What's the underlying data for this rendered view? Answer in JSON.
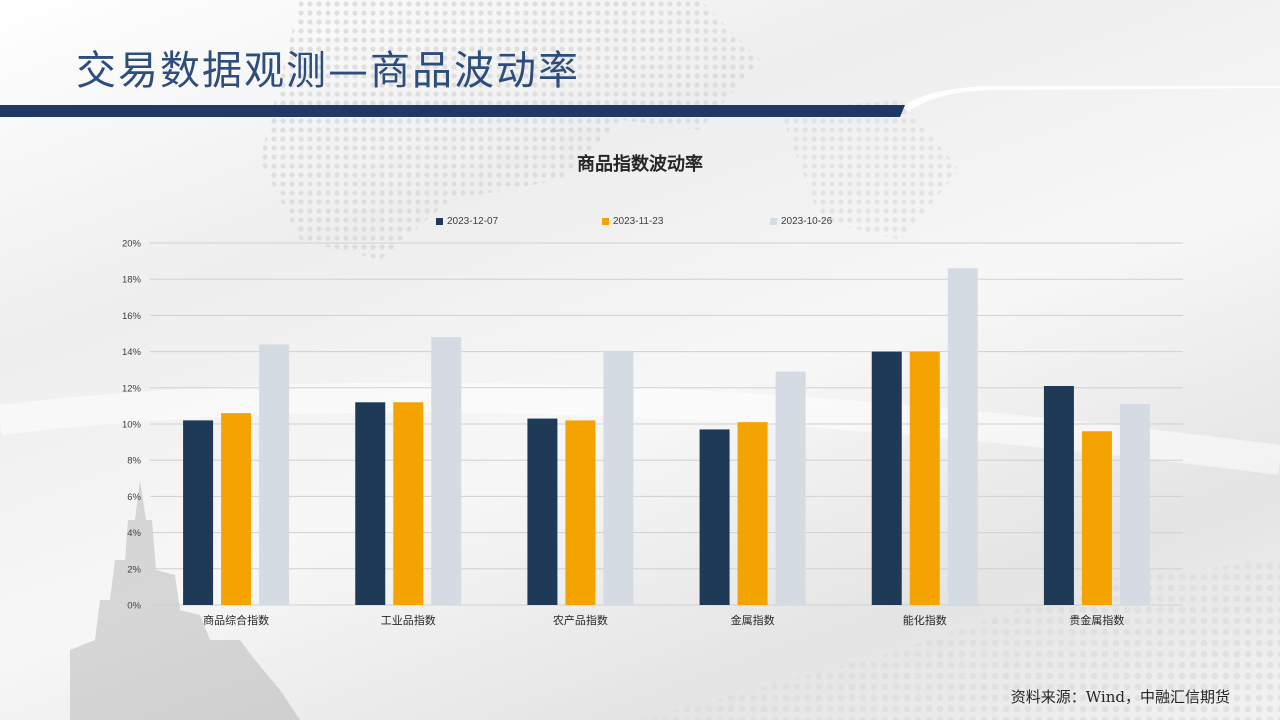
{
  "page": {
    "title": "交易数据观测—商品波动率",
    "source": "资料来源：Wind，中融汇信期货",
    "colors": {
      "title": "#2d4d7c",
      "header_bar": "#1f3864"
    }
  },
  "chart_data": {
    "type": "bar",
    "title": "商品指数波动率",
    "categories": [
      "商品综合指数",
      "工业品指数",
      "农产品指数",
      "金属指数",
      "能化指数",
      "贵金属指数"
    ],
    "series": [
      {
        "name": "2023-12-07",
        "color": "#1f3a56",
        "values": [
          10.2,
          11.2,
          10.3,
          9.7,
          14.0,
          12.1
        ]
      },
      {
        "name": "2023-11-23",
        "color": "#f5a300",
        "values": [
          10.6,
          11.2,
          10.2,
          10.1,
          14.0,
          9.6
        ]
      },
      {
        "name": "2023-10-26",
        "color": "#d5dbe3",
        "values": [
          14.4,
          14.8,
          14.0,
          12.9,
          18.6,
          11.1
        ]
      }
    ],
    "ylim": [
      0,
      20
    ],
    "yticks": [
      "0%",
      "2%",
      "4%",
      "6%",
      "8%",
      "10%",
      "12%",
      "14%",
      "16%",
      "18%",
      "20%"
    ],
    "grid": true,
    "legend_position": "top"
  }
}
